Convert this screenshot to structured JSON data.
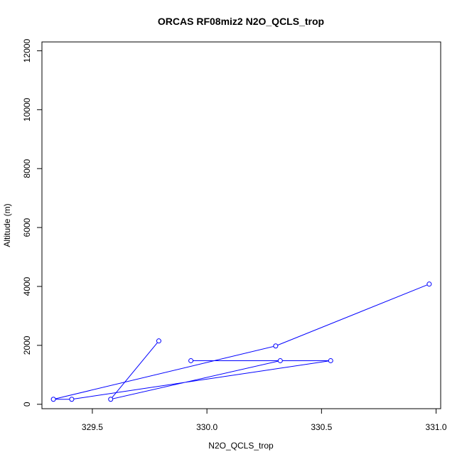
{
  "chart_data": {
    "type": "line",
    "title": "ORCAS RF08miz2 N2O_QCLS_trop",
    "xlabel": "N2O_QCLS_trop",
    "ylabel": "Altitude (m)",
    "xlim": [
      329.28,
      331.02
    ],
    "ylim": [
      -150,
      12300
    ],
    "xticks": [
      329.5,
      330.0,
      330.5,
      331.0
    ],
    "xtick_labels": [
      "329.5",
      "330.0",
      "330.5",
      "331.0"
    ],
    "yticks": [
      0,
      2000,
      4000,
      6000,
      8000,
      10000,
      12000
    ],
    "ytick_labels": [
      "0",
      "2000",
      "4000",
      "6000",
      "8000",
      "10000",
      "12000"
    ],
    "grid": false,
    "series": [
      {
        "color": "#0000ff",
        "marker": "open-circle",
        "x": [
          330.97,
          330.3,
          329.33,
          329.41,
          330.54,
          329.93,
          330.32,
          329.58,
          329.79
        ],
        "y": [
          4080,
          1980,
          170,
          170,
          1480,
          1480,
          1480,
          170,
          2150
        ]
      }
    ]
  }
}
